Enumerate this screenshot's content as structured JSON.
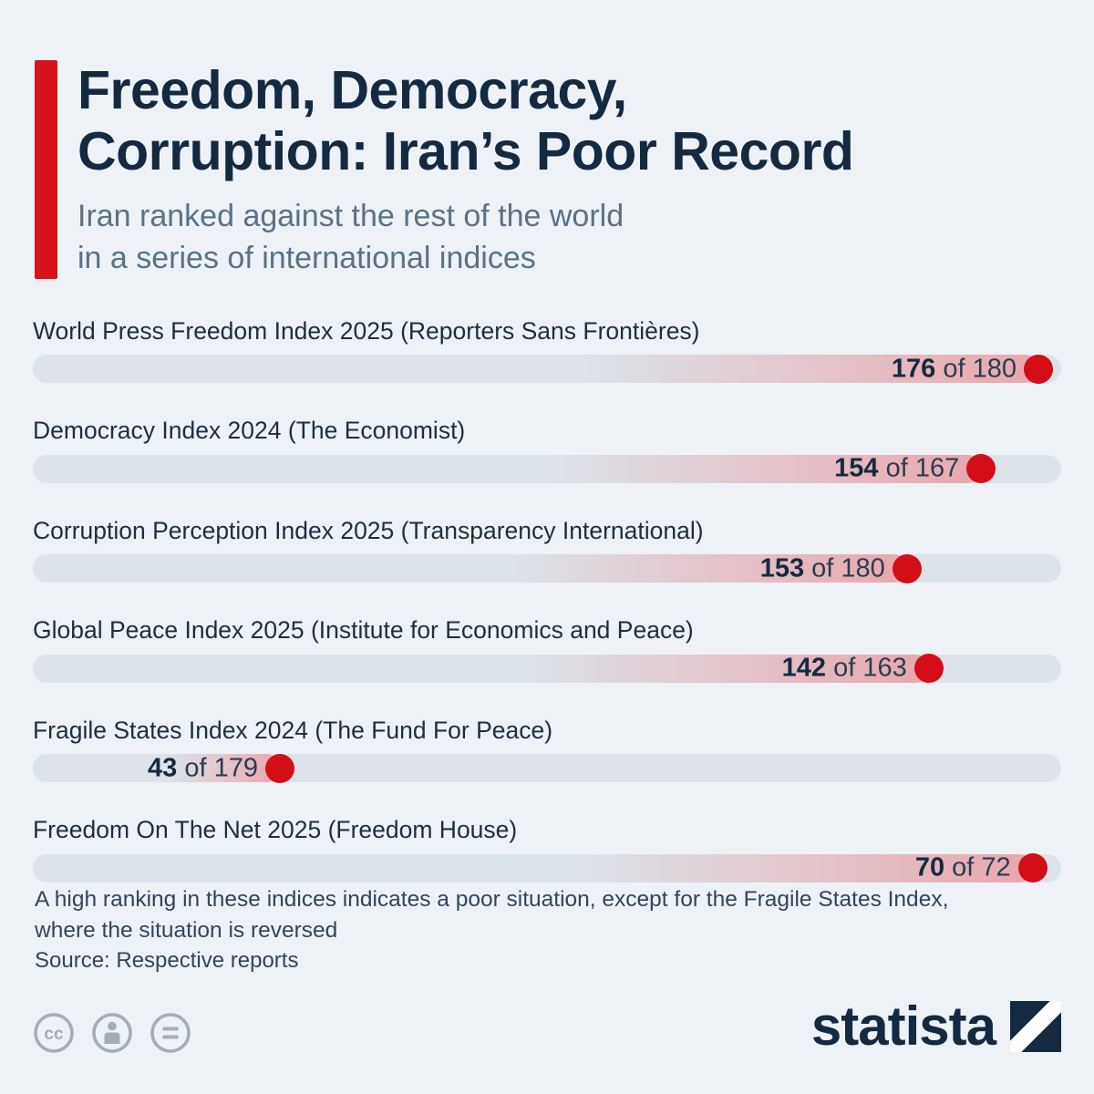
{
  "colors": {
    "background": "#eef2f6",
    "accent_red": "#d7131c",
    "dot_red": "#d40e17",
    "title_navy": "#152a40",
    "subtitle_gray": "#5b7186",
    "bar_base": "#dce3e9",
    "bar_pink": "#e9a7ad"
  },
  "header": {
    "title_lines": [
      "Freedom, Democracy,",
      "Corruption: Iran’s Poor Record"
    ],
    "subtitle_lines": [
      "Iran ranked against the rest of the world",
      "in a series of international indices"
    ]
  },
  "chart_data": {
    "type": "bar",
    "title": "Freedom, Democracy, Corruption: Iran’s Poor Record",
    "subtitle": "Iran ranked against the rest of the world in a series of international indices",
    "connector": "of",
    "rows": [
      {
        "label": "World Press Freedom Index 2025 (Reporters Sans Frontières)",
        "rank": 176,
        "total": 180
      },
      {
        "label": "Democracy Index 2024 (The Economist)",
        "rank": 154,
        "total": 167
      },
      {
        "label": "Corruption Perception Index 2025 (Transparency International)",
        "rank": 153,
        "total": 180
      },
      {
        "label": "Global Peace Index 2025 (Institute for Economics and Peace)",
        "rank": 142,
        "total": 163
      },
      {
        "label": "Fragile States Index 2024 (The Fund For Peace)",
        "rank": 43,
        "total": 179
      },
      {
        "label": "Freedom On The Net 2025 (Freedom House)",
        "rank": 70,
        "total": 72
      }
    ]
  },
  "footer": {
    "note_lines": [
      "A high ranking in these indices indicates a poor situation, except for the Fragile States Index,",
      "where the situation is reversed"
    ],
    "source": "Source: Respective reports",
    "brand": "statista"
  }
}
